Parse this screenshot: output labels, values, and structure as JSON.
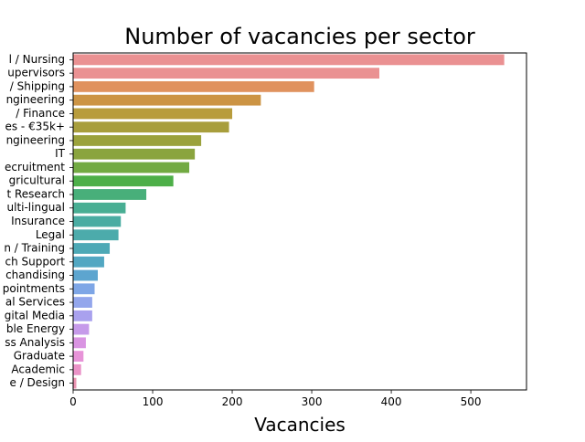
{
  "chart_data": {
    "type": "bar",
    "orientation": "horizontal",
    "title": "Number of vacancies per sector",
    "xlabel": "Vacancies",
    "ylabel": "",
    "xlim": [
      0,
      570
    ],
    "xticks": [
      0,
      100,
      200,
      300,
      400,
      500
    ],
    "grid": false,
    "legend": "none",
    "categories": [
      "l / Nursing",
      "upervisors",
      "/ Shipping",
      "ngineering",
      "/ Finance",
      "es - €35k+",
      "ngineering",
      "IT",
      "ecruitment",
      "gricultural",
      "t Research",
      "ulti-lingual",
      "Insurance",
      "Legal",
      "n / Training",
      "ch Support",
      "chandising",
      "pointments",
      "al Services",
      "gital Media",
      "ble Energy",
      "ss Analysis",
      "Graduate",
      "Academic",
      "e / Design"
    ],
    "values": [
      542,
      385,
      303,
      236,
      200,
      196,
      161,
      153,
      146,
      126,
      92,
      66,
      60,
      57,
      46,
      39,
      31,
      27,
      24,
      24,
      20,
      16,
      13,
      10,
      4
    ],
    "colors": [
      "#ea9192",
      "#ea9192",
      "#e0925e",
      "#cc9444",
      "#b89c3c",
      "#a89e3c",
      "#9ba23c",
      "#8aa43e",
      "#72aa42",
      "#4daf48",
      "#48af7a",
      "#48ae93",
      "#4aaca2",
      "#4cabab",
      "#4da9b6",
      "#52a7c2",
      "#5da5cf",
      "#7ea6e6",
      "#93a6ec",
      "#a9a1ee",
      "#c69aea",
      "#d994e2",
      "#e793d8",
      "#ea92c7",
      "#ea91b0"
    ]
  }
}
